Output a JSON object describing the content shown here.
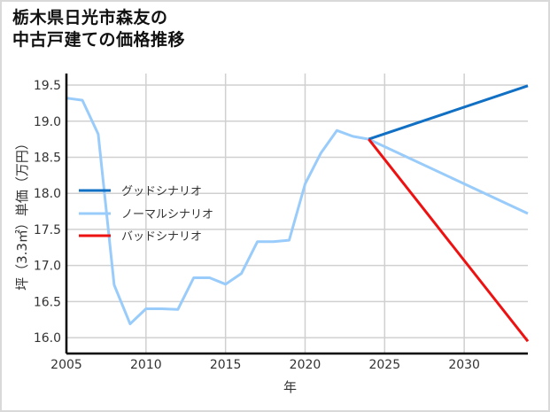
{
  "title_lines": [
    "栃木県日光市森友の",
    "中古戸建ての価格推移"
  ],
  "chart_data": {
    "type": "line",
    "title": "栃木県日光市森友の中古戸建ての価格推移",
    "xlabel": "年",
    "ylabel": "坪（3.3㎡）単価（万円）",
    "xlim": [
      2005,
      2034
    ],
    "ylim": [
      15.78,
      19.66
    ],
    "xticks": [
      2005,
      2010,
      2015,
      2020,
      2025,
      2030
    ],
    "yticks": [
      16.0,
      16.5,
      17.0,
      17.5,
      18.0,
      18.5,
      19.0,
      19.5
    ],
    "ytick_labels": [
      "16.0",
      "16.5",
      "17.0",
      "17.5",
      "18.0",
      "18.5",
      "19.0",
      "19.5"
    ],
    "grid": true,
    "legend_position": "center-left",
    "series": [
      {
        "name": "グッドシナリオ",
        "color": "#1170c4",
        "x": [
          2024,
          2034
        ],
        "values": [
          18.75,
          19.49
        ]
      },
      {
        "name": "ノーマルシナリオ",
        "color": "#99ccfa",
        "x": [
          2005,
          2006,
          2007,
          2008,
          2009,
          2010,
          2011,
          2012,
          2013,
          2014,
          2015,
          2016,
          2017,
          2018,
          2019,
          2020,
          2021,
          2022,
          2023,
          2024,
          2034
        ],
        "values": [
          19.32,
          19.29,
          18.82,
          16.73,
          16.19,
          16.4,
          16.4,
          16.39,
          16.83,
          16.83,
          16.74,
          16.89,
          17.33,
          17.33,
          17.35,
          18.13,
          18.56,
          18.87,
          18.79,
          18.75,
          17.72
        ]
      },
      {
        "name": "バッドシナリオ",
        "color": "#ee1111",
        "x": [
          2024,
          2034
        ],
        "values": [
          18.75,
          15.95
        ]
      }
    ]
  }
}
